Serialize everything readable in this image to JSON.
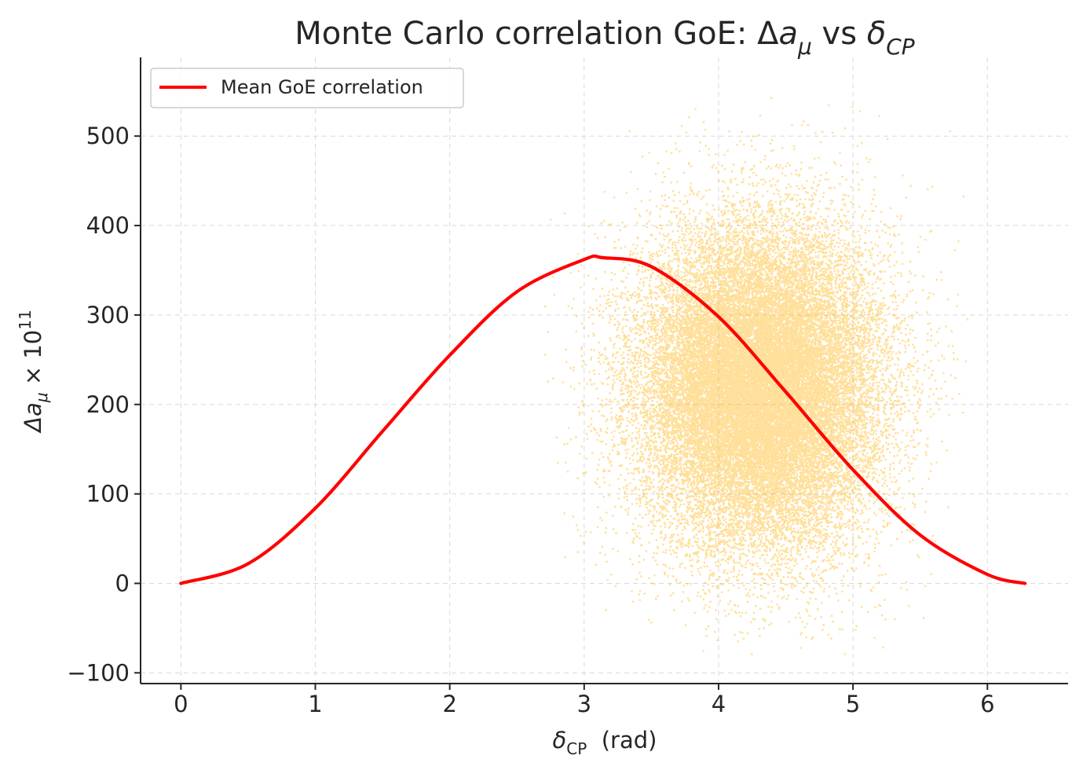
{
  "chart_data": {
    "type": "scatter",
    "title": {
      "text": "Monte Carlo correlation GoE: Δ",
      "var": "a",
      "sub": "μ",
      "mid": " vs ",
      "var2": "δ",
      "sub2": "CP"
    },
    "xlabel": {
      "var": "δ",
      "sub": "CP",
      "rest": "  (rad)"
    },
    "ylabel": {
      "var": "Δa",
      "sub": "μ",
      "mid": " × 10",
      "sup": "11"
    },
    "xlim": [
      -0.3,
      6.6
    ],
    "ylim": [
      -112,
      588
    ],
    "xticks": [
      0,
      1,
      2,
      3,
      4,
      5,
      6
    ],
    "yticks": [
      -100,
      0,
      100,
      200,
      300,
      400,
      500
    ],
    "ytick_labels": [
      "−100",
      "0",
      "100",
      "200",
      "300",
      "400",
      "500"
    ],
    "grid": true,
    "legend": {
      "position": "top-left",
      "entries": [
        "Mean GoE correlation"
      ]
    },
    "series": [
      {
        "name": "Mean GoE correlation",
        "kind": "line",
        "color": "#ff0000",
        "x": [
          0,
          0.5,
          1,
          1.5,
          2,
          2.5,
          3,
          3.14,
          3.5,
          4,
          4.5,
          5,
          5.5,
          6,
          6.28
        ],
        "y": [
          0,
          22,
          84,
          170,
          255,
          326,
          362,
          364,
          354,
          298,
          214,
          127,
          54,
          10,
          0
        ]
      },
      {
        "kind": "scatter",
        "color": "#ffb000",
        "center": {
          "x": 4.3,
          "y": 220
        },
        "spread": {
          "x": 0.45,
          "y": 90
        },
        "count": 30000,
        "x_range": [
          2.7,
          5.9
        ],
        "y_range": [
          -80,
          555
        ]
      }
    ],
    "colors": {
      "line": "#ff0000",
      "points": "#ffb000",
      "grid": "#d9d9d9",
      "axis": "#262626"
    }
  }
}
